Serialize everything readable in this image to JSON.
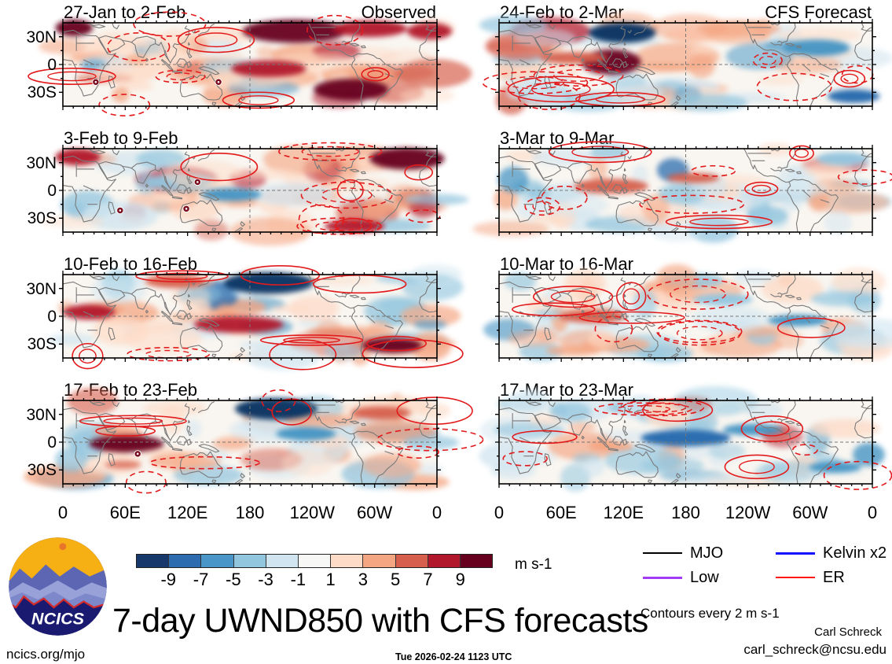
{
  "panels": [
    {
      "title": "27-Jan to 2-Feb",
      "corner": "Observed"
    },
    {
      "title": "3-Feb to 9-Feb",
      "corner": ""
    },
    {
      "title": "10-Feb to 16-Feb",
      "corner": ""
    },
    {
      "title": "17-Feb to 23-Feb",
      "corner": ""
    },
    {
      "title": "24-Feb to 2-Mar",
      "corner": "CFS Forecast"
    },
    {
      "title": "3-Mar to 9-Mar",
      "corner": ""
    },
    {
      "title": "10-Mar to 16-Mar",
      "corner": ""
    },
    {
      "title": "17-Mar to 23-Mar",
      "corner": ""
    }
  ],
  "axes": {
    "y_ticks": [
      "30N",
      "0",
      "30S"
    ],
    "x_ticks": [
      "0",
      "60E",
      "120E",
      "180",
      "120W",
      "60W",
      "0"
    ]
  },
  "colorbar": {
    "tick_labels": [
      "-9",
      "-7",
      "-5",
      "-3",
      "-1",
      "1",
      "3",
      "5",
      "7",
      "9"
    ],
    "colors": [
      "#16386b",
      "#2e6cb0",
      "#4a96c8",
      "#92c5de",
      "#d1e5f0",
      "#f7f7f5",
      "#fddbc7",
      "#f4a582",
      "#d6604d",
      "#b2182b",
      "#67001f"
    ],
    "units": "m s-1"
  },
  "legend": {
    "items": [
      {
        "label": "MJO",
        "color": "#000000",
        "thickness": 2
      },
      {
        "label": "Low",
        "color": "#a23bf5",
        "thickness": 3
      },
      {
        "label": "Kelvin x2",
        "color": "#1414ff",
        "thickness": 3
      },
      {
        "label": "ER",
        "color": "#ff1512",
        "thickness": 2.5
      }
    ],
    "note": "Contours every 2 m s-1"
  },
  "logo_text": "NCICS",
  "title": "7-day UWND850 with CFS forecasts",
  "footer": {
    "url": "ncics.org/mjo",
    "timestamp": "Tue 2026-02-24 1123 UTC",
    "author": "Carl Schreck",
    "email": "carl_schreck@ncsu.edu"
  },
  "chart_data": {
    "type": "heatmap",
    "title": "7-day UWND850 with CFS forecasts",
    "variable": "UWND850 anomaly",
    "units": "m s-1",
    "columns": [
      "Observed",
      "CFS Forecast"
    ],
    "panels": [
      {
        "period": "27-Jan to 2-Feb",
        "source": "Observed"
      },
      {
        "period": "3-Feb to 9-Feb",
        "source": "Observed"
      },
      {
        "period": "10-Feb to 16-Feb",
        "source": "Observed"
      },
      {
        "period": "17-Feb to 23-Feb",
        "source": "Observed"
      },
      {
        "period": "24-Feb to 2-Mar",
        "source": "CFS Forecast"
      },
      {
        "period": "3-Mar to 9-Mar",
        "source": "CFS Forecast"
      },
      {
        "period": "10-Mar to 16-Mar",
        "source": "CFS Forecast"
      },
      {
        "period": "17-Mar to 23-Mar",
        "source": "CFS Forecast"
      }
    ],
    "x_axis": {
      "ticks": [
        "0",
        "60E",
        "120E",
        "180",
        "120W",
        "60W",
        "0"
      ],
      "range_deg": [
        0,
        360
      ]
    },
    "y_axis": {
      "ticks": [
        "30N",
        "0",
        "30S"
      ],
      "range_deg": [
        -45,
        45
      ]
    },
    "color_levels": [
      -9,
      -7,
      -5,
      -3,
      -1,
      1,
      3,
      5,
      7,
      9
    ],
    "contour_interval": "2 m s-1",
    "wave_contour_legend": [
      "MJO",
      "Low",
      "Kelvin x2",
      "ER"
    ],
    "grid": "dashed reference lines at equator and 180 longitude",
    "legend_position": "bottom-right"
  }
}
